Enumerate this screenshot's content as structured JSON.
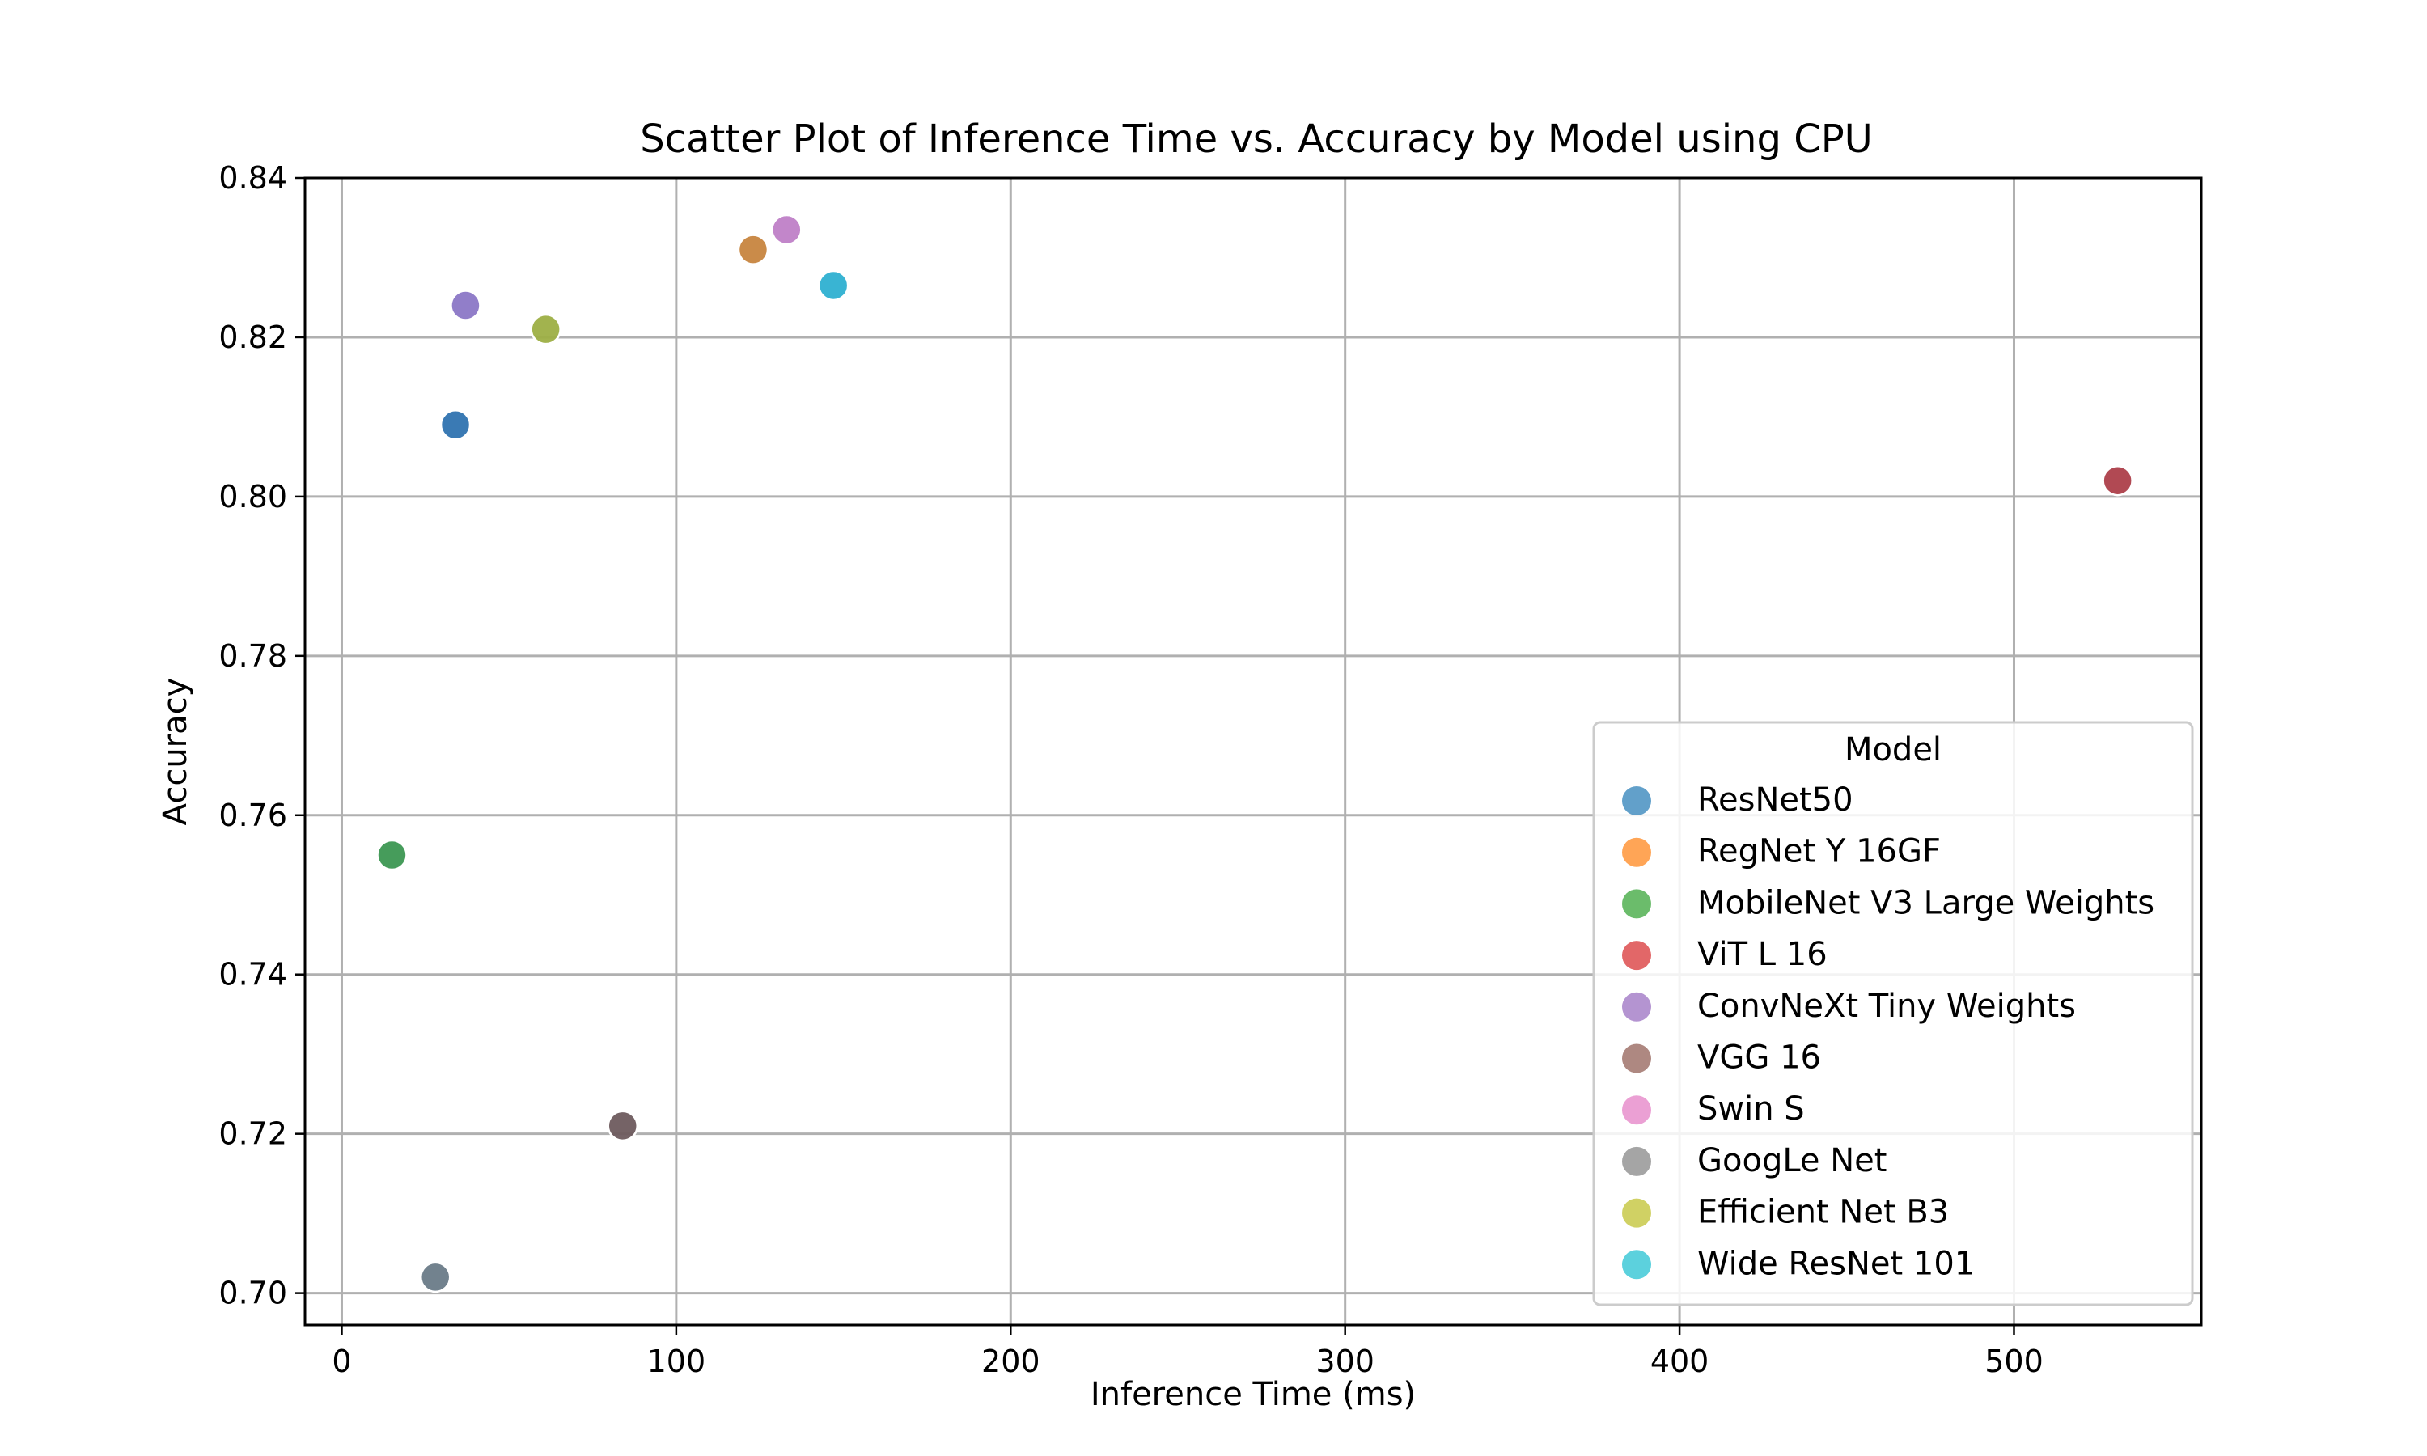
{
  "chart_data": {
    "type": "scatter",
    "title": "Scatter Plot of Inference Time vs. Accuracy by Model using CPU",
    "xlabel": "Inference Time (ms)",
    "ylabel": "Accuracy",
    "xlim": [
      -11,
      556
    ],
    "ylim": [
      0.696,
      0.84
    ],
    "x_ticks": [
      0,
      100,
      200,
      300,
      400,
      500
    ],
    "y_ticks": [
      0.7,
      0.72,
      0.74,
      0.76,
      0.78,
      0.8,
      0.82,
      0.84
    ],
    "y_tick_labels": [
      "0.70",
      "0.72",
      "0.74",
      "0.76",
      "0.78",
      "0.80",
      "0.82",
      "0.84"
    ],
    "grid": true,
    "legend": {
      "title": "Model",
      "placement": "lower-right"
    },
    "series": [
      {
        "name": "ResNet50",
        "color": "#1f77b4",
        "x": [
          34
        ],
        "y": [
          0.809
        ]
      },
      {
        "name": "RegNet Y 16GF",
        "color": "#ff7f0e",
        "x": [
          123
        ],
        "y": [
          0.831
        ]
      },
      {
        "name": "MobileNet V3 Large Weights",
        "color": "#2ca02c",
        "x": [
          15
        ],
        "y": [
          0.755
        ]
      },
      {
        "name": "ViT L 16",
        "color": "#d62728",
        "x": [
          531
        ],
        "y": [
          0.802
        ]
      },
      {
        "name": "ConvNeXt Tiny Weights",
        "color": "#9467bd",
        "x": [
          37
        ],
        "y": [
          0.824
        ]
      },
      {
        "name": "VGG 16",
        "color": "#8c564b",
        "x": [
          84
        ],
        "y": [
          0.721
        ]
      },
      {
        "name": "Swin S",
        "color": "#e377c2",
        "x": [
          133
        ],
        "y": [
          0.8335
        ]
      },
      {
        "name": "GoogLe Net",
        "color": "#7f7f7f",
        "x": [
          28
        ],
        "y": [
          0.702
        ]
      },
      {
        "name": "Efficient Net B3",
        "color": "#bcbd22",
        "x": [
          61
        ],
        "y": [
          0.821
        ]
      },
      {
        "name": "Wide ResNet 101",
        "color": "#17becf",
        "x": [
          147
        ],
        "y": [
          0.8265
        ]
      }
    ],
    "point_darkening": [
      {
        "series": "ResNet50",
        "fill": "#2f73b0"
      },
      {
        "series": "RegNet Y 16GF",
        "fill": "#c7853f"
      },
      {
        "series": "MobileNet V3 Large Weights",
        "fill": "#3c9752"
      },
      {
        "series": "ViT L 16",
        "fill": "#ad3f4a"
      },
      {
        "series": "ConvNeXt Tiny Weights",
        "fill": "#8b77c6"
      },
      {
        "series": "VGG 16",
        "fill": "#6e5b5e"
      },
      {
        "series": "Swin S",
        "fill": "#bf80c7"
      },
      {
        "series": "GoogLe Net",
        "fill": "#6a7b88"
      },
      {
        "series": "Efficient Net B3",
        "fill": "#9daf45"
      },
      {
        "series": "Wide ResNet 101",
        "fill": "#2eb0d1"
      }
    ]
  }
}
